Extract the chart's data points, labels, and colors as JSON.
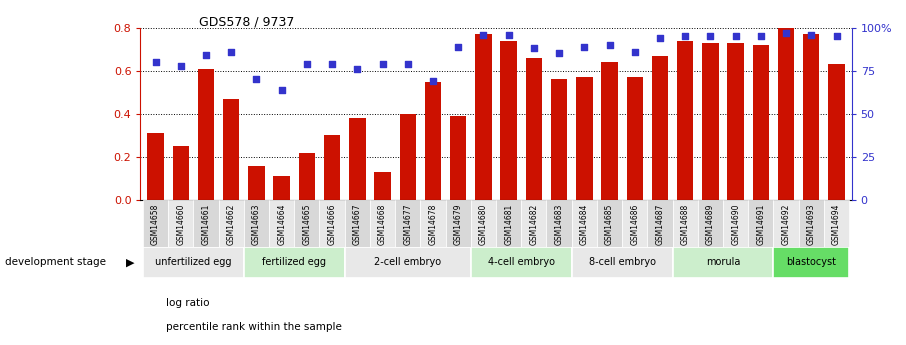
{
  "title": "GDS578 / 9737",
  "samples": [
    "GSM14658",
    "GSM14660",
    "GSM14661",
    "GSM14662",
    "GSM14663",
    "GSM14664",
    "GSM14665",
    "GSM14666",
    "GSM14667",
    "GSM14668",
    "GSM14677",
    "GSM14678",
    "GSM14679",
    "GSM14680",
    "GSM14681",
    "GSM14682",
    "GSM14683",
    "GSM14684",
    "GSM14685",
    "GSM14686",
    "GSM14687",
    "GSM14688",
    "GSM14689",
    "GSM14690",
    "GSM14691",
    "GSM14692",
    "GSM14693",
    "GSM14694"
  ],
  "log_ratio": [
    0.31,
    0.25,
    0.61,
    0.47,
    0.16,
    0.11,
    0.22,
    0.3,
    0.38,
    0.13,
    0.4,
    0.55,
    0.39,
    0.77,
    0.74,
    0.66,
    0.56,
    0.57,
    0.64,
    0.57,
    0.67,
    0.74,
    0.73,
    0.73,
    0.72,
    0.8,
    0.77,
    0.63
  ],
  "percentile": [
    80,
    78,
    84,
    86,
    70,
    64,
    79,
    79,
    76,
    79,
    79,
    69,
    89,
    96,
    96,
    88,
    85,
    89,
    90,
    86,
    94,
    95,
    95,
    95,
    95,
    97,
    96,
    95
  ],
  "bar_color": "#cc1100",
  "dot_color": "#3333cc",
  "stages": [
    {
      "label": "unfertilized egg",
      "start": 0,
      "end": 4,
      "color": "#e8e8e8"
    },
    {
      "label": "fertilized egg",
      "start": 4,
      "end": 8,
      "color": "#cceecc"
    },
    {
      "label": "2-cell embryo",
      "start": 8,
      "end": 13,
      "color": "#e8e8e8"
    },
    {
      "label": "4-cell embryo",
      "start": 13,
      "end": 17,
      "color": "#cceecc"
    },
    {
      "label": "8-cell embryo",
      "start": 17,
      "end": 21,
      "color": "#e8e8e8"
    },
    {
      "label": "morula",
      "start": 21,
      "end": 25,
      "color": "#cceecc"
    },
    {
      "label": "blastocyst",
      "start": 25,
      "end": 28,
      "color": "#66dd66"
    }
  ],
  "ylim_left": [
    0,
    0.8
  ],
  "ylim_right": [
    0,
    100
  ],
  "yticks_left": [
    0,
    0.2,
    0.4,
    0.6,
    0.8
  ],
  "yticks_right": [
    0,
    25,
    50,
    75,
    100
  ],
  "legend_bar": "log ratio",
  "legend_dot": "percentile rank within the sample",
  "dev_stage_label": "development stage",
  "background_color": "#ffffff"
}
